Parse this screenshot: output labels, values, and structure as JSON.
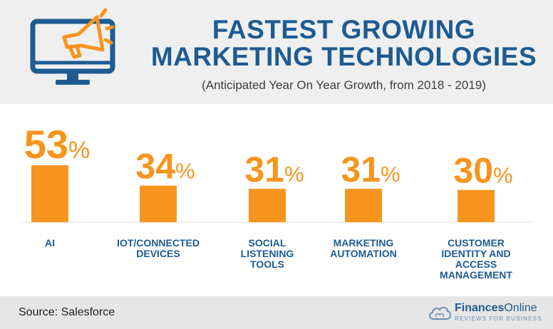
{
  "header": {
    "title_line1": "FASTEST GROWING",
    "title_line2": "MARKETING TECHNOLOGIES",
    "subtitle": "(Anticipated Year On Year Growth, from 2018 - 2019)",
    "icon": "monitor-megaphone-icon"
  },
  "colors": {
    "accent": "#f7941d",
    "title": "#1d5b93",
    "header_bg": "#efefef",
    "footer_bg": "#e6e6e6"
  },
  "chart_data": {
    "type": "bar",
    "categories": [
      "AI",
      "IOT/CONNECTED DEVICES",
      "SOCIAL LISTENING TOOLS",
      "MARKETING AUTOMATION",
      "CUSTOMER IDENTITY AND ACCESS MANAGEMENT"
    ],
    "category_lines": [
      [
        "AI"
      ],
      [
        "IOT/CONNECTED",
        "DEVICES"
      ],
      [
        "SOCIAL",
        "LISTENING",
        "TOOLS"
      ],
      [
        "MARKETING",
        "AUTOMATION"
      ],
      [
        "CUSTOMER",
        "IDENTITY AND",
        "ACCESS",
        "MANAGEMENT"
      ]
    ],
    "values": [
      53,
      34,
      31,
      31,
      30
    ],
    "value_labels": [
      "53",
      "34",
      "31",
      "31",
      "30"
    ],
    "unit": "%",
    "ylim": [
      0,
      53
    ],
    "grid": false,
    "legend": "none"
  },
  "footer": {
    "source": "Source: Salesforce",
    "brand_bold": "Finances",
    "brand_rest": "Online",
    "brand_tagline": "REVIEWS FOR BUSINESS",
    "brand_icon": "cloud-icon"
  }
}
